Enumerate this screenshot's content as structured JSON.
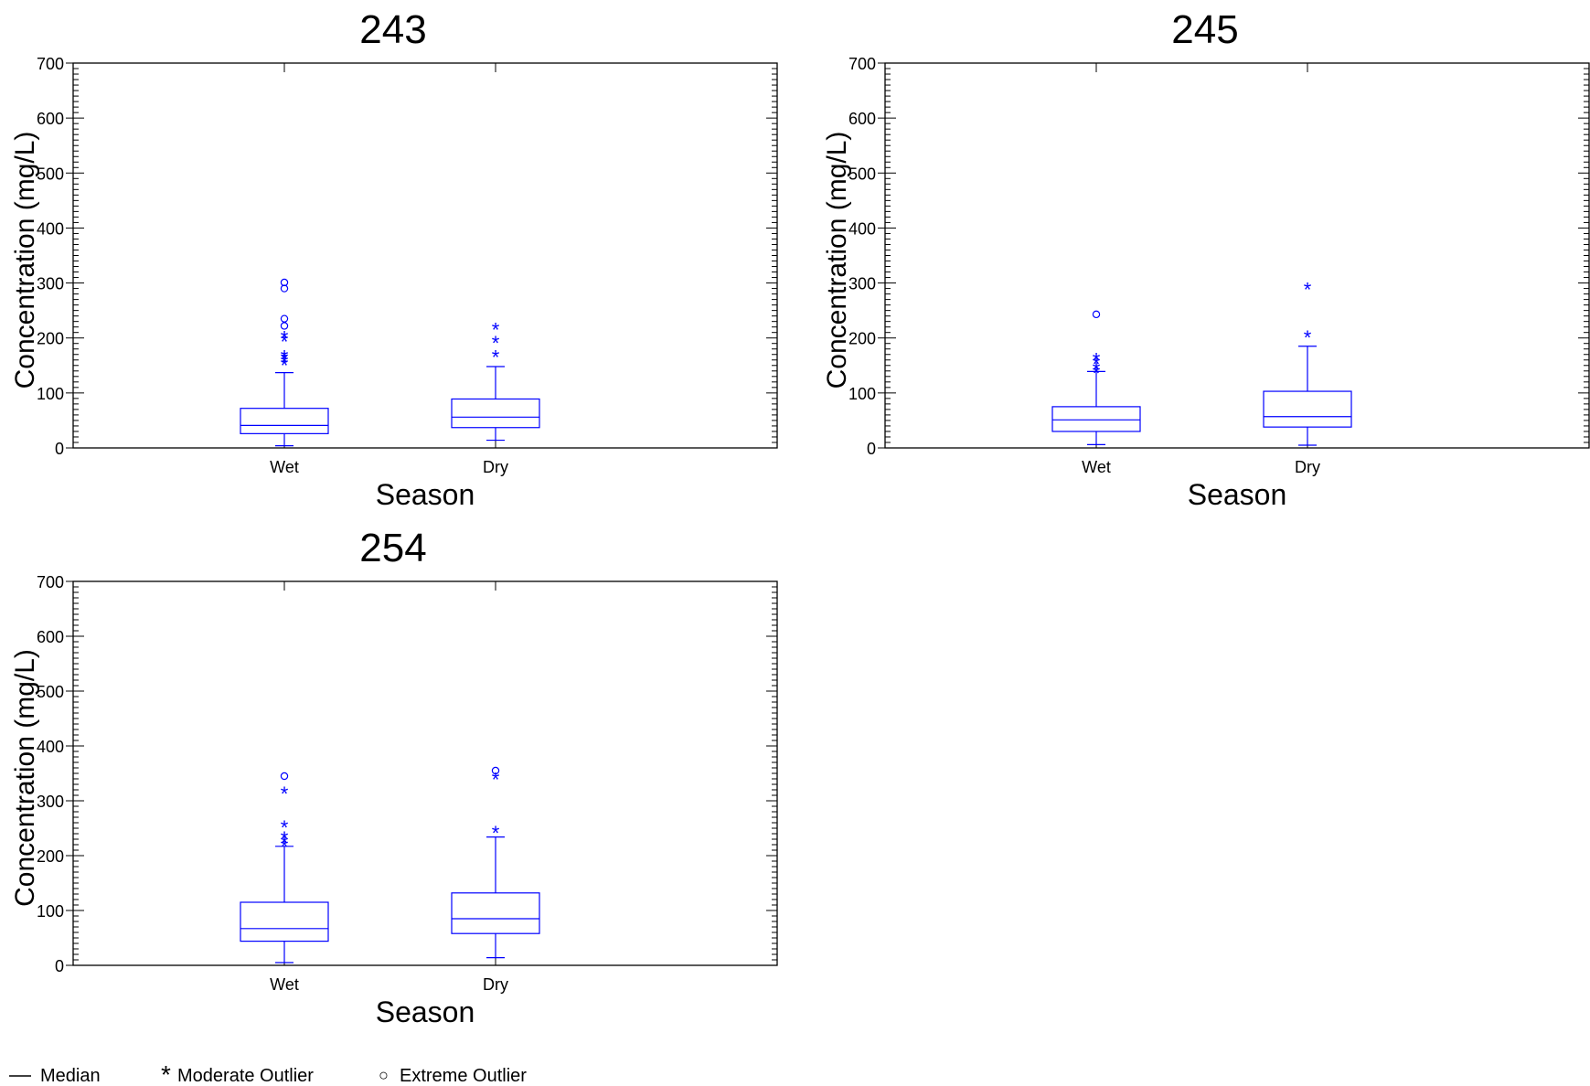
{
  "chart_data": [
    {
      "type": "box",
      "title": "243",
      "xlabel": "Season",
      "ylabel": "Concentration (mg/L)",
      "ylim": [
        0,
        700
      ],
      "yticks": [
        0,
        100,
        200,
        300,
        400,
        500,
        600,
        700
      ],
      "ytick_labels": [
        "0",
        "100",
        "200",
        "300",
        "400",
        "500",
        "600",
        "700"
      ],
      "categories": [
        "Wet",
        "Dry"
      ],
      "boxes": [
        {
          "category": "Wet",
          "whisker_low": 4,
          "q1": 26,
          "median": 41,
          "q3": 72,
          "whisker_high": 137,
          "moderate_outliers": [
            157,
            162,
            168,
            172,
            200,
            207
          ],
          "extreme_outliers": [
            222,
            235,
            290,
            301
          ]
        },
        {
          "category": "Dry",
          "whisker_low": 14,
          "q1": 37,
          "median": 56,
          "q3": 89,
          "whisker_high": 148,
          "moderate_outliers": [
            172,
            198,
            222
          ],
          "extreme_outliers": []
        }
      ]
    },
    {
      "type": "box",
      "title": "245",
      "xlabel": "Season",
      "ylabel": "Concentration (mg/L)",
      "ylim": [
        0,
        700
      ],
      "yticks": [
        0,
        100,
        200,
        300,
        400,
        500,
        600,
        700
      ],
      "ytick_labels": [
        "0",
        "100",
        "200",
        "300",
        "400",
        "500",
        "600",
        "700"
      ],
      "categories": [
        "Wet",
        "Dry"
      ],
      "boxes": [
        {
          "category": "Wet",
          "whisker_low": 6,
          "q1": 30,
          "median": 51,
          "q3": 75,
          "whisker_high": 139,
          "moderate_outliers": [
            143,
            150,
            160,
            167
          ],
          "extreme_outliers": [
            243
          ]
        },
        {
          "category": "Dry",
          "whisker_low": 5,
          "q1": 38,
          "median": 57,
          "q3": 103,
          "whisker_high": 185,
          "moderate_outliers": [
            208,
            295
          ],
          "extreme_outliers": []
        }
      ]
    },
    {
      "type": "box",
      "title": "254",
      "xlabel": "Season",
      "ylabel": "Concentration (mg/L)",
      "ylim": [
        0,
        700
      ],
      "yticks": [
        0,
        100,
        200,
        300,
        400,
        500,
        600,
        700
      ],
      "ytick_labels": [
        "0",
        "100",
        "200",
        "300",
        "400",
        "500",
        "600",
        "700"
      ],
      "categories": [
        "Wet",
        "Dry"
      ],
      "boxes": [
        {
          "category": "Wet",
          "whisker_low": 5,
          "q1": 44,
          "median": 67,
          "q3": 115,
          "whisker_high": 217,
          "moderate_outliers": [
            223,
            230,
            238,
            258,
            320
          ],
          "extreme_outliers": [
            345
          ]
        },
        {
          "category": "Dry",
          "whisker_low": 14,
          "q1": 58,
          "median": 85,
          "q3": 132,
          "whisker_high": 234,
          "moderate_outliers": [
            248,
            346
          ],
          "extreme_outliers": [
            355
          ]
        }
      ]
    }
  ],
  "legend": {
    "median_label": "Median",
    "moderate_symbol": "*",
    "moderate_label": "Moderate Outlier",
    "extreme_symbol": "○",
    "extreme_label": "Extreme Outlier"
  },
  "colors": {
    "series": "#0000ff",
    "axis": "#000000"
  }
}
